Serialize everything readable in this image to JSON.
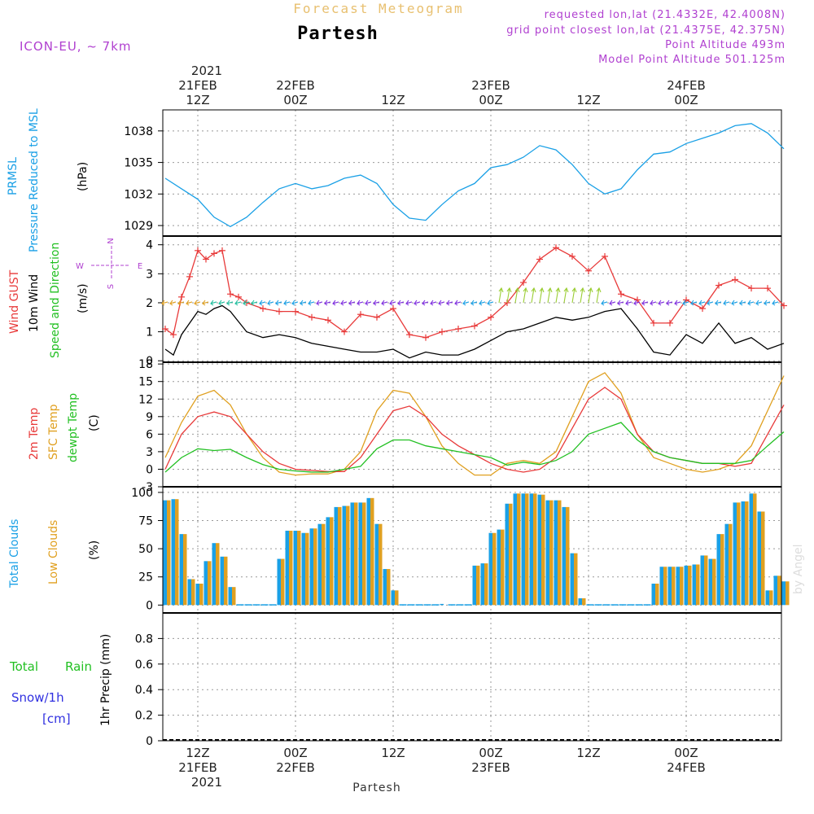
{
  "header": {
    "title": "Forecast Meteogram",
    "location": "Partesh",
    "model": "ICON-EU, ~ 7km",
    "requested": "requested lon,lat (21.4332E, 42.4008N)",
    "grid_point": "grid point closest lon,lat (21.4375E, 42.375N)",
    "point_altitude": "Point Altitude 493m",
    "model_altitude": "Model Point Altitude 501.125m",
    "credit": "by Angel",
    "footer_location": "Partesh"
  },
  "time_axis": {
    "year_top": "2021",
    "labels": [
      {
        "t": 12,
        "date": "21FEB",
        "hour": "12Z"
      },
      {
        "t": 24,
        "date": "22FEB",
        "hour": "00Z"
      },
      {
        "t": 36,
        "date": "",
        "hour": "12Z"
      },
      {
        "t": 48,
        "date": "23FEB",
        "hour": "00Z"
      },
      {
        "t": 60,
        "date": "",
        "hour": "12Z"
      },
      {
        "t": 72,
        "date": "24FEB",
        "hour": "00Z"
      }
    ],
    "year_bottom": "2021",
    "tmin": 7.7,
    "tmax": 83.7
  },
  "colors": {
    "pressure": "#1aa0e6",
    "gust": "#e83a3a",
    "wind": "#000000",
    "t2m": "#e83a3a",
    "sfc": "#e0a020",
    "dewpt": "#22c022",
    "total_clouds": "#1aa0e6",
    "low_clouds": "#e0a020",
    "rain": "#22c022",
    "snow": "#3030e0",
    "purple": "#b040d0",
    "title": "#e8c070"
  },
  "panels": {
    "pressure": {
      "label1": "PRMSL",
      "label2": "Pressure Reduced to MSL",
      "unit": "(hPa)",
      "ticks": [
        "1029",
        "1032",
        "1035",
        "1038"
      ]
    },
    "wind": {
      "label_gust": "Wind GUST",
      "label_wind": "10m Wind",
      "label_dir": "Speed and Direction",
      "unit": "(m/s)",
      "ticks": [
        "0",
        "1",
        "2",
        "3",
        "4"
      ],
      "compass_n": "N",
      "compass_s": "S",
      "compass_w": "W",
      "compass_e": "E"
    },
    "temp": {
      "label_t2m": "2m Temp",
      "label_sfc": "SFC Temp",
      "label_dew": "dewpt Temp",
      "unit": "(C)",
      "ticks": [
        "-3",
        "0",
        "3",
        "6",
        "9",
        "12",
        "15",
        "18"
      ]
    },
    "clouds": {
      "label_total": "Total Clouds",
      "label_low": "Low Clouds",
      "unit": "(%)",
      "ticks": [
        "0",
        "25",
        "50",
        "75",
        "100"
      ]
    },
    "precip": {
      "label_total": "Total",
      "label_rain": "Rain",
      "label_snow": "Snow/1h",
      "label_cm": "[cm]",
      "ylabel": "1hr Precip (mm)",
      "ticks": [
        "0",
        "0.2",
        "0.4",
        "0.6",
        "0.8"
      ]
    }
  },
  "chart_data": [
    {
      "type": "line",
      "title": "PRMSL Pressure Reduced to MSL",
      "ylabel": "(hPa)",
      "ylim": [
        1028,
        1040
      ],
      "series": [
        {
          "name": "PRMSL",
          "x": [
            8,
            10,
            12,
            14,
            16,
            18,
            20,
            22,
            24,
            26,
            28,
            30,
            32,
            34,
            36,
            38,
            40,
            42,
            44,
            46,
            48,
            50,
            52,
            54,
            56,
            58,
            60,
            62,
            64,
            66,
            68,
            70,
            72,
            74,
            76,
            78,
            80,
            82,
            84
          ],
          "values": [
            1033.5,
            1032.5,
            1031.5,
            1029.8,
            1028.9,
            1029.8,
            1031.2,
            1032.5,
            1033,
            1032.5,
            1032.8,
            1033.5,
            1033.8,
            1033,
            1031,
            1029.7,
            1029.5,
            1031,
            1032.3,
            1033,
            1034.5,
            1034.8,
            1035.5,
            1036.6,
            1036.2,
            1034.8,
            1033,
            1032,
            1032.5,
            1034.3,
            1035.8,
            1036,
            1036.8,
            1037.3,
            1037.8,
            1038.5,
            1038.7,
            1037.8,
            1036.3
          ]
        }
      ]
    },
    {
      "type": "line",
      "title": "Wind GUST / 10m Wind Speed and Direction",
      "ylabel": "(m/s)",
      "ylim": [
        0,
        4.3
      ],
      "series": [
        {
          "name": "Wind GUST",
          "x": [
            8,
            9,
            10,
            11,
            12,
            13,
            14,
            15,
            16,
            17,
            18,
            20,
            22,
            24,
            26,
            28,
            30,
            32,
            34,
            36,
            38,
            40,
            42,
            44,
            46,
            48,
            50,
            52,
            54,
            56,
            58,
            60,
            62,
            64,
            66,
            68,
            70,
            72,
            74,
            76,
            78,
            80,
            82,
            84
          ],
          "values": [
            1.1,
            0.9,
            2.2,
            2.9,
            3.8,
            3.5,
            3.7,
            3.8,
            2.3,
            2.2,
            2,
            1.8,
            1.7,
            1.7,
            1.5,
            1.4,
            1.0,
            1.6,
            1.5,
            1.8,
            0.9,
            0.8,
            1.0,
            1.1,
            1.2,
            1.5,
            2.0,
            2.7,
            3.5,
            3.9,
            3.6,
            3.1,
            3.6,
            2.3,
            2.1,
            1.3,
            1.3,
            2.1,
            1.8,
            2.6,
            2.8,
            2.5,
            2.5,
            1.9
          ]
        },
        {
          "name": "10m Wind",
          "x": [
            8,
            9,
            10,
            11,
            12,
            13,
            14,
            15,
            16,
            18,
            20,
            22,
            24,
            26,
            28,
            30,
            32,
            34,
            36,
            38,
            40,
            42,
            44,
            46,
            48,
            50,
            52,
            54,
            56,
            58,
            60,
            62,
            64,
            66,
            68,
            70,
            72,
            74,
            76,
            78,
            80,
            82,
            84
          ],
          "values": [
            0.4,
            0.2,
            0.9,
            1.3,
            1.7,
            1.6,
            1.8,
            1.9,
            1.7,
            1.0,
            0.8,
            0.9,
            0.8,
            0.6,
            0.5,
            0.4,
            0.3,
            0.3,
            0.4,
            0.1,
            0.3,
            0.2,
            0.2,
            0.4,
            0.7,
            1.0,
            1.1,
            1.3,
            1.5,
            1.4,
            1.5,
            1.7,
            1.8,
            1.1,
            0.3,
            0.2,
            0.9,
            0.6,
            1.3,
            0.6,
            0.8,
            0.4,
            0.6
          ]
        }
      ]
    },
    {
      "type": "line",
      "title": "2m Temp / SFC Temp / dewpt Temp",
      "ylabel": "(C)",
      "ylim": [
        -3,
        18
      ],
      "series": [
        {
          "name": "2m Temp",
          "x": [
            8,
            10,
            12,
            14,
            16,
            18,
            20,
            22,
            24,
            26,
            28,
            30,
            32,
            34,
            36,
            38,
            40,
            42,
            44,
            46,
            48,
            50,
            52,
            54,
            56,
            58,
            60,
            62,
            64,
            66,
            68,
            70,
            72,
            74,
            76,
            78,
            80,
            82,
            84
          ],
          "values": [
            0,
            6,
            9,
            9.8,
            9,
            6,
            3,
            1,
            0,
            -0.2,
            -0.4,
            -0.4,
            2,
            6,
            10,
            10.8,
            9,
            6,
            4,
            2.5,
            1,
            0,
            -0.5,
            0,
            2,
            7,
            12,
            14,
            12,
            6,
            3,
            2,
            1.5,
            1,
            1,
            0.5,
            1,
            6,
            11
          ]
        },
        {
          "name": "SFC Temp",
          "x": [
            8,
            10,
            12,
            14,
            16,
            18,
            20,
            22,
            24,
            26,
            28,
            30,
            32,
            34,
            36,
            38,
            40,
            42,
            44,
            46,
            48,
            50,
            52,
            54,
            56,
            58,
            60,
            62,
            64,
            66,
            68,
            70,
            72,
            74,
            76,
            78,
            80,
            82,
            84
          ],
          "values": [
            2,
            8,
            12.5,
            13.5,
            11,
            6,
            2,
            -0.5,
            -1,
            -0.8,
            -0.8,
            0,
            3,
            10,
            13.5,
            13,
            9,
            4,
            1,
            -1,
            -1,
            1,
            1.5,
            1,
            3,
            9,
            15,
            16.5,
            13,
            6,
            2,
            1,
            0,
            -0.5,
            0,
            1,
            4,
            10,
            16
          ]
        },
        {
          "name": "dewpt Temp",
          "x": [
            8,
            10,
            12,
            14,
            16,
            18,
            20,
            22,
            24,
            26,
            28,
            30,
            32,
            34,
            36,
            38,
            40,
            42,
            44,
            46,
            48,
            50,
            52,
            54,
            56,
            58,
            60,
            62,
            64,
            66,
            68,
            70,
            72,
            74,
            76,
            78,
            80,
            82,
            84
          ],
          "values": [
            -0.5,
            2,
            3.5,
            3.2,
            3.4,
            2,
            0.8,
            0,
            -0.3,
            -0.5,
            -0.5,
            0,
            0.5,
            3.5,
            5,
            5,
            4,
            3.5,
            3,
            2.5,
            2,
            0.7,
            1.2,
            0.8,
            1.5,
            3,
            6,
            7,
            8,
            5,
            3,
            2,
            1.5,
            1,
            1,
            1,
            1.5,
            4,
            6.4
          ]
        }
      ]
    },
    {
      "type": "bar",
      "title": "Total Clouds / Low Clouds",
      "ylabel": "(%)",
      "ylim": [
        0,
        100
      ],
      "x_start": 7.7,
      "categories_step_hours": 1,
      "series": [
        {
          "name": "Total Clouds",
          "values": [
            93,
            94,
            63,
            23,
            19,
            39,
            55,
            43,
            16,
            0,
            0,
            0,
            0,
            0,
            41,
            66,
            66,
            64,
            68,
            72,
            78,
            87,
            88,
            91,
            91,
            95,
            72,
            32,
            13,
            0,
            0,
            0,
            0,
            0,
            1,
            0,
            0,
            0,
            35,
            37,
            64,
            67,
            90,
            99,
            99,
            99,
            98,
            93,
            93,
            87,
            46,
            6,
            0,
            0,
            0,
            0,
            0,
            0,
            0,
            0,
            19,
            34,
            34,
            34,
            35,
            36,
            44,
            41,
            63,
            72,
            91,
            92,
            99,
            83,
            13,
            26,
            21
          ]
        },
        {
          "name": "Low Clouds",
          "values": [
            93,
            94,
            63,
            23,
            19,
            39,
            55,
            43,
            16,
            0,
            0,
            0,
            0,
            0,
            41,
            66,
            66,
            64,
            68,
            72,
            78,
            87,
            88,
            91,
            91,
            95,
            72,
            32,
            13,
            0,
            0,
            0,
            0,
            0,
            0,
            0,
            0,
            0,
            35,
            37,
            64,
            67,
            90,
            99,
            99,
            99,
            98,
            93,
            93,
            87,
            46,
            6,
            0,
            0,
            0,
            0,
            0,
            0,
            0,
            0,
            19,
            34,
            34,
            34,
            35,
            36,
            44,
            41,
            63,
            72,
            91,
            92,
            99,
            83,
            13,
            26,
            21
          ]
        }
      ]
    },
    {
      "type": "bar",
      "title": "1hr Precip",
      "ylabel": "1hr Precip (mm)",
      "ylim": [
        0,
        1
      ],
      "series": [
        {
          "name": "Total Rain",
          "values": []
        },
        {
          "name": "Snow/1h",
          "values": []
        }
      ]
    }
  ]
}
